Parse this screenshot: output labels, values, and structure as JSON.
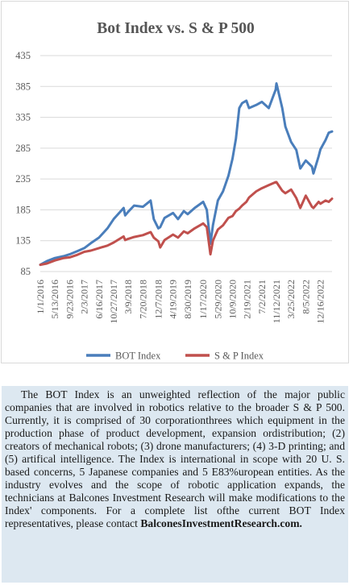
{
  "chart_data": {
    "type": "line",
    "title": "Bot Index vs. S & P 500",
    "xlabel": "",
    "ylabel": "",
    "ylim": [
      85,
      435
    ],
    "yticks": [
      85,
      135,
      185,
      235,
      285,
      335,
      385,
      435
    ],
    "grid": true,
    "legend_position": "bottom",
    "x_tick_labels": [
      "1/1/2016",
      "5/13/2016",
      "9/23/2016",
      "2/3/2017",
      "6/16/2017",
      "10/27/2017",
      "3/9/2018",
      "7/20/2018",
      "12/7/2018",
      "4/19/2019",
      "8/30/2019",
      "1/17/2020",
      "5/29/2020",
      "10/9/2020",
      "2/19/2021",
      "7/2/2021",
      "11/12/2021",
      "3/25/2022",
      "8/5/2022",
      "12/16/2022"
    ],
    "x": [
      "1/1/2016",
      "3/1/2016",
      "5/13/2016",
      "8/1/2016",
      "9/23/2016",
      "12/1/2016",
      "2/3/2017",
      "4/3/2017",
      "6/16/2017",
      "9/1/2017",
      "10/27/2017",
      "1/26/2018",
      "2/9/2018",
      "3/9/2018",
      "5/1/2018",
      "7/20/2018",
      "9/28/2018",
      "10/26/2018",
      "12/7/2018",
      "12/24/2018",
      "2/1/2019",
      "4/19/2019",
      "6/3/2019",
      "7/26/2019",
      "8/30/2019",
      "11/1/2019",
      "1/17/2020",
      "2/19/2020",
      "3/23/2020",
      "4/15/2020",
      "5/29/2020",
      "7/15/2020",
      "9/2/2020",
      "10/9/2020",
      "11/9/2020",
      "12/10/2020",
      "1/4/2021",
      "2/12/2021",
      "3/8/2021",
      "5/12/2021",
      "7/2/2021",
      "9/3/2021",
      "11/5/2021",
      "11/12/2021",
      "1/3/2022",
      "2/1/2022",
      "3/25/2022",
      "5/11/2022",
      "6/16/2022",
      "8/5/2022",
      "9/30/2022",
      "10/13/2022",
      "11/30/2022",
      "12/16/2022",
      "1/31/2023",
      "3/1/2023",
      "3/31/2023"
    ],
    "series": [
      {
        "name": "BOT Index",
        "color": "#4a7ebb",
        "values": [
          96,
          102,
          107,
          110,
          113,
          118,
          123,
          131,
          140,
          155,
          170,
          188,
          176,
          182,
          192,
          190,
          200,
          170,
          155,
          157,
          172,
          180,
          170,
          183,
          178,
          188,
          198,
          185,
          130,
          160,
          200,
          215,
          240,
          268,
          300,
          350,
          358,
          362,
          350,
          355,
          360,
          350,
          380,
          390,
          350,
          320,
          295,
          282,
          252,
          265,
          255,
          244,
          272,
          283,
          298,
          310,
          312
        ]
      },
      {
        "name": "S & P Index",
        "color": "#c0504d",
        "values": [
          96,
          98,
          103,
          107,
          108,
          112,
          117,
          119,
          123,
          127,
          132,
          142,
          136,
          138,
          141,
          144,
          149,
          140,
          134,
          124,
          136,
          145,
          140,
          150,
          147,
          155,
          163,
          157,
          113,
          135,
          153,
          160,
          172,
          175,
          183,
          187,
          192,
          198,
          205,
          215,
          220,
          225,
          230,
          230,
          216,
          212,
          218,
          204,
          188,
          208,
          190,
          188,
          198,
          195,
          200,
          198,
          203
        ]
      }
    ]
  },
  "description": {
    "text": "The BOT Index is an unweighted reflection of the major public companies that are involved in robotics relative to the broader S & P 500. Currently, it is comprised of 30 corporationthrees which equipment in the production phase of product development, expansion ordistribution; (2) creators of mechanical robots; (3) drone manufacturers; (4) 3-D printing; and (5) artifical intelligence. The Index is international in scope with 20 U. S. based concerns, 5 Japanese companies and 5 E83%uropean entities. As the industry evolves and the scope of robotic application expands, the technicians at Balcones Investment Research will make modifications to the Index' components. For a  complete list ofthe current  BOT  Index  representatives,  please  contact",
    "link": "BalconesInvestmentResearch.com."
  }
}
